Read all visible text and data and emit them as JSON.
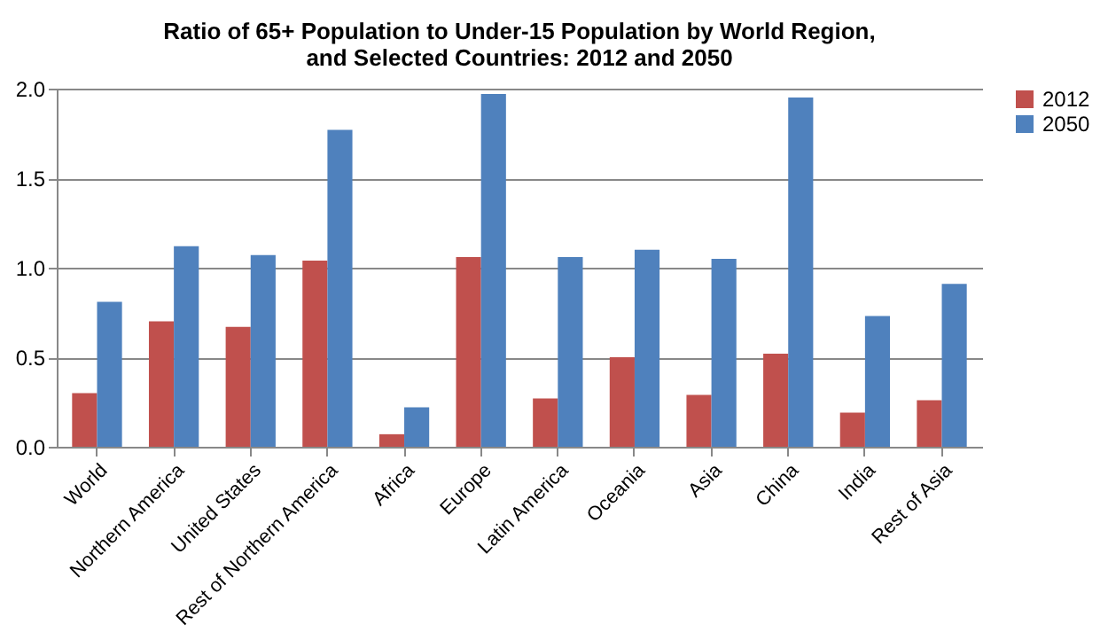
{
  "chart_data": {
    "type": "bar",
    "title": "Ratio of 65+ Population to Under-15 Population by World Region,\nand Selected Countries: 2012 and 2050",
    "categories": [
      "World",
      "Northern America",
      "United States",
      "Rest of Northern America",
      "Africa",
      "Europe",
      "Latin America",
      "Oceania",
      "Asia",
      "China",
      "India",
      "Rest of Asia"
    ],
    "series": [
      {
        "name": "2012",
        "color": "#c0504d",
        "values": [
          0.3,
          0.7,
          0.67,
          1.04,
          0.07,
          1.06,
          0.27,
          0.5,
          0.29,
          0.52,
          0.19,
          0.26
        ]
      },
      {
        "name": "2050",
        "color": "#4f81bd",
        "values": [
          0.81,
          1.12,
          1.07,
          1.77,
          0.22,
          1.97,
          1.06,
          1.1,
          1.05,
          1.95,
          0.73,
          0.91
        ]
      }
    ],
    "ylim": [
      0,
      2.0
    ],
    "yticks": [
      {
        "value": 0,
        "label": "0.0"
      },
      {
        "value": 0.5,
        "label": "0.5"
      },
      {
        "value": 1,
        "label": "1.0"
      },
      {
        "value": 1.5,
        "label": "1.5"
      },
      {
        "value": 2,
        "label": "2.0"
      }
    ],
    "grid": "y",
    "legend": "right"
  }
}
